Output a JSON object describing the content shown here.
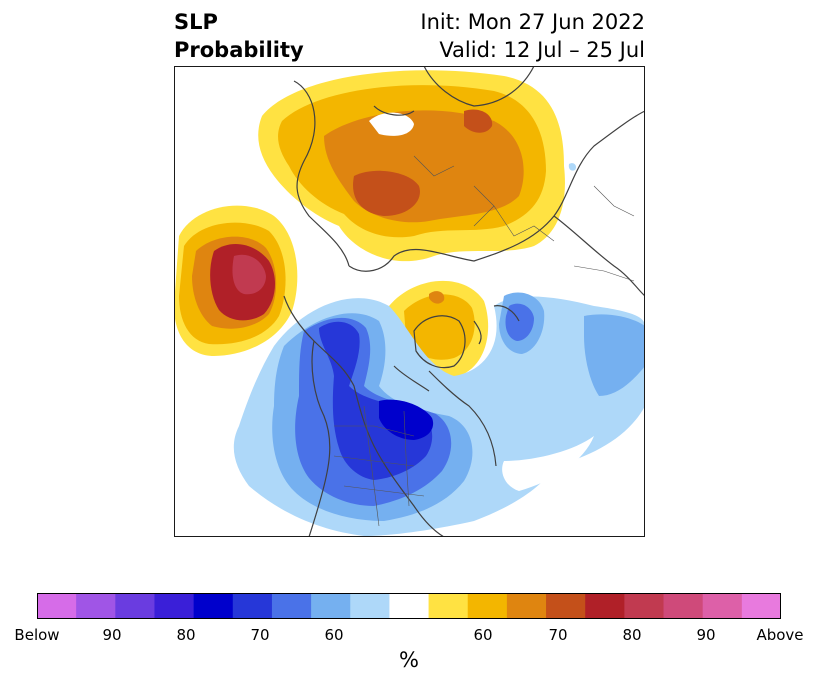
{
  "title": {
    "left_line1": "SLP",
    "left_line2": "Probability",
    "right_line1": "Init: Mon 27 Jun 2022",
    "right_line2": "Valid: 12 Jul – 25 Jul"
  },
  "colors": {
    "border": "#1a1a1a",
    "land_outline": "#404040",
    "below_90": "#9b55e3",
    "below_80": "#0000cc",
    "below_70": "#4a72e8",
    "below_60": "#75b0f0",
    "below_50": "#aed8f9",
    "above_50": "#ffe242",
    "above_60": "#f3b600",
    "above_70": "#df8510",
    "above_80": "#b02028",
    "above_90": "#d24f88"
  },
  "colorbar": {
    "bins": [
      "#d66ce8",
      "#a055e6",
      "#6a3ce0",
      "#3a1fd8",
      "#0000cc",
      "#2637d8",
      "#4a72e8",
      "#75b0f0",
      "#aed8f9",
      "#ffffff",
      "#ffe242",
      "#f3b600",
      "#df8510",
      "#c4501a",
      "#b02028",
      "#c13a50",
      "#cf4a7a",
      "#dd60a8",
      "#e87ade"
    ],
    "tick_labels": [
      "Below",
      "90",
      "80",
      "70",
      "60",
      "60",
      "70",
      "80",
      "90",
      "Above"
    ],
    "unit": "%"
  }
}
